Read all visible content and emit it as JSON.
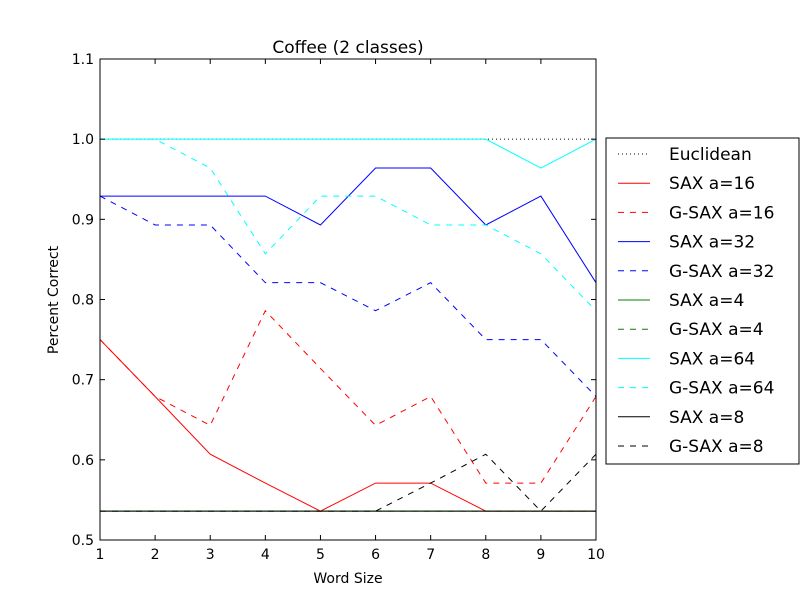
{
  "chart_data": {
    "type": "line",
    "title": "Coffee (2 classes)",
    "xlabel": "Word Size",
    "ylabel": "Percent Correct",
    "xlim": [
      1,
      10
    ],
    "ylim": [
      0.5,
      1.1
    ],
    "xticks": [
      "1",
      "2",
      "3",
      "4",
      "5",
      "6",
      "7",
      "8",
      "9",
      "10"
    ],
    "yticks": [
      "0.5",
      "0.6",
      "0.7",
      "0.8",
      "0.9",
      "1.0",
      "1.1"
    ],
    "grid": false,
    "legend_position": "right, outside",
    "x": [
      1,
      2,
      3,
      4,
      5,
      6,
      7,
      8,
      9,
      10
    ],
    "series": [
      {
        "name": "Euclidean",
        "color": "#000000",
        "style": "dotted",
        "values": [
          1.0,
          1.0,
          1.0,
          1.0,
          1.0,
          1.0,
          1.0,
          1.0,
          1.0,
          1.0
        ]
      },
      {
        "name": "SAX a=16",
        "color": "#ff0000",
        "style": "solid",
        "values": [
          0.75,
          0.679,
          0.607,
          0.571,
          0.536,
          0.571,
          0.571,
          0.536,
          0.536,
          0.536
        ]
      },
      {
        "name": "G-SAX a=16",
        "color": "#ff0000",
        "style": "dashed",
        "values": [
          0.75,
          0.679,
          0.643,
          0.786,
          0.714,
          0.643,
          0.679,
          0.571,
          0.571,
          0.679
        ]
      },
      {
        "name": "SAX a=32",
        "color": "#0000ff",
        "style": "solid",
        "values": [
          0.929,
          0.929,
          0.929,
          0.929,
          0.893,
          0.964,
          0.964,
          0.893,
          0.929,
          0.821
        ]
      },
      {
        "name": "G-SAX a=32",
        "color": "#0000ff",
        "style": "dashed",
        "values": [
          0.929,
          0.893,
          0.893,
          0.821,
          0.821,
          0.786,
          0.821,
          0.75,
          0.75,
          0.679
        ]
      },
      {
        "name": "SAX a=4",
        "color": "#008000",
        "style": "solid",
        "values": [
          0.536,
          0.536,
          0.536,
          0.536,
          0.536,
          0.536,
          0.536,
          0.536,
          0.536,
          0.536
        ]
      },
      {
        "name": "G-SAX a=4",
        "color": "#008000",
        "style": "dashed",
        "values": [
          0.536,
          0.536,
          0.536,
          0.536,
          0.536,
          0.536,
          0.536,
          0.536,
          0.536,
          0.536
        ]
      },
      {
        "name": "SAX a=64",
        "color": "#00ffff",
        "style": "solid",
        "values": [
          1.0,
          1.0,
          1.0,
          1.0,
          1.0,
          1.0,
          1.0,
          1.0,
          0.964,
          1.0
        ]
      },
      {
        "name": "G-SAX a=64",
        "color": "#00ffff",
        "style": "dashed",
        "values": [
          1.0,
          1.0,
          0.964,
          0.857,
          0.929,
          0.929,
          0.893,
          0.893,
          0.857,
          0.786
        ]
      },
      {
        "name": "SAX a=8",
        "color": "#000000",
        "style": "solid",
        "values": [
          0.536,
          0.536,
          0.536,
          0.536,
          0.536,
          0.536,
          0.536,
          0.536,
          0.536,
          0.536
        ]
      },
      {
        "name": "G-SAX a=8",
        "color": "#000000",
        "style": "dashed",
        "values": [
          0.536,
          0.536,
          0.536,
          0.536,
          0.536,
          0.536,
          0.571,
          0.607,
          0.536,
          0.607
        ]
      }
    ]
  }
}
